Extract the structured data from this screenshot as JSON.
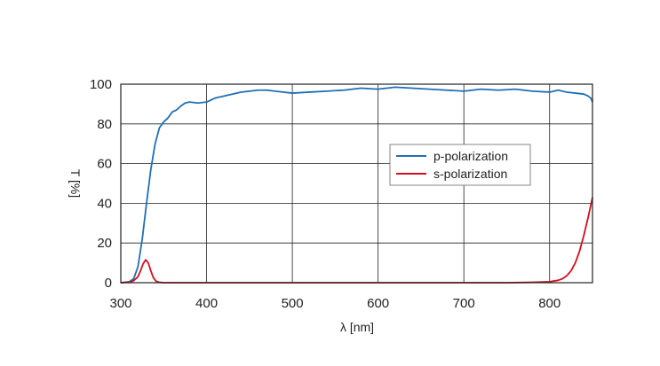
{
  "chart_data": {
    "type": "line",
    "xlabel": "λ [nm]",
    "ylabel": "T [%]",
    "xlim": [
      300,
      850
    ],
    "ylim": [
      0,
      100
    ],
    "xticks": [
      300,
      400,
      500,
      600,
      700,
      800
    ],
    "yticks": [
      0,
      20,
      40,
      60,
      80,
      100
    ],
    "grid": true,
    "legend_position": "center-right",
    "series": [
      {
        "name": "p-polarization",
        "color": "#1f6fb5",
        "x": [
          300,
          310,
          315,
          320,
          325,
          330,
          335,
          340,
          345,
          350,
          355,
          360,
          365,
          370,
          375,
          380,
          390,
          400,
          410,
          420,
          430,
          440,
          450,
          460,
          470,
          480,
          490,
          500,
          520,
          540,
          560,
          580,
          600,
          620,
          640,
          660,
          680,
          700,
          720,
          740,
          760,
          780,
          800,
          810,
          820,
          830,
          840,
          845,
          848,
          850
        ],
        "y": [
          0,
          0.5,
          2,
          8,
          22,
          40,
          57,
          70,
          78,
          81,
          83,
          86,
          87,
          89,
          90.5,
          91,
          90.5,
          91,
          93,
          94,
          95,
          96,
          96.5,
          97,
          97,
          96.5,
          96,
          95.5,
          96,
          96.5,
          97,
          98,
          97.5,
          98.5,
          98,
          97.5,
          97,
          96.5,
          97.5,
          97,
          97.5,
          96.5,
          96,
          97,
          96,
          95.5,
          95,
          94,
          93,
          91
        ]
      },
      {
        "name": "s-polarization",
        "color": "#d0101e",
        "x": [
          300,
          310,
          315,
          320,
          323,
          326,
          329,
          332,
          335,
          338,
          341,
          345,
          350,
          360,
          380,
          400,
          450,
          500,
          550,
          600,
          650,
          700,
          750,
          780,
          800,
          810,
          815,
          820,
          825,
          830,
          835,
          840,
          845,
          850
        ],
        "y": [
          0,
          0.2,
          1,
          3,
          6,
          9.5,
          11.5,
          10,
          6,
          2.5,
          0.8,
          0.2,
          0,
          0,
          0,
          0,
          0,
          0,
          0,
          0,
          0,
          0,
          0,
          0.2,
          0.5,
          1.2,
          2,
          3.5,
          6,
          10,
          16,
          24,
          33,
          43
        ]
      }
    ]
  }
}
